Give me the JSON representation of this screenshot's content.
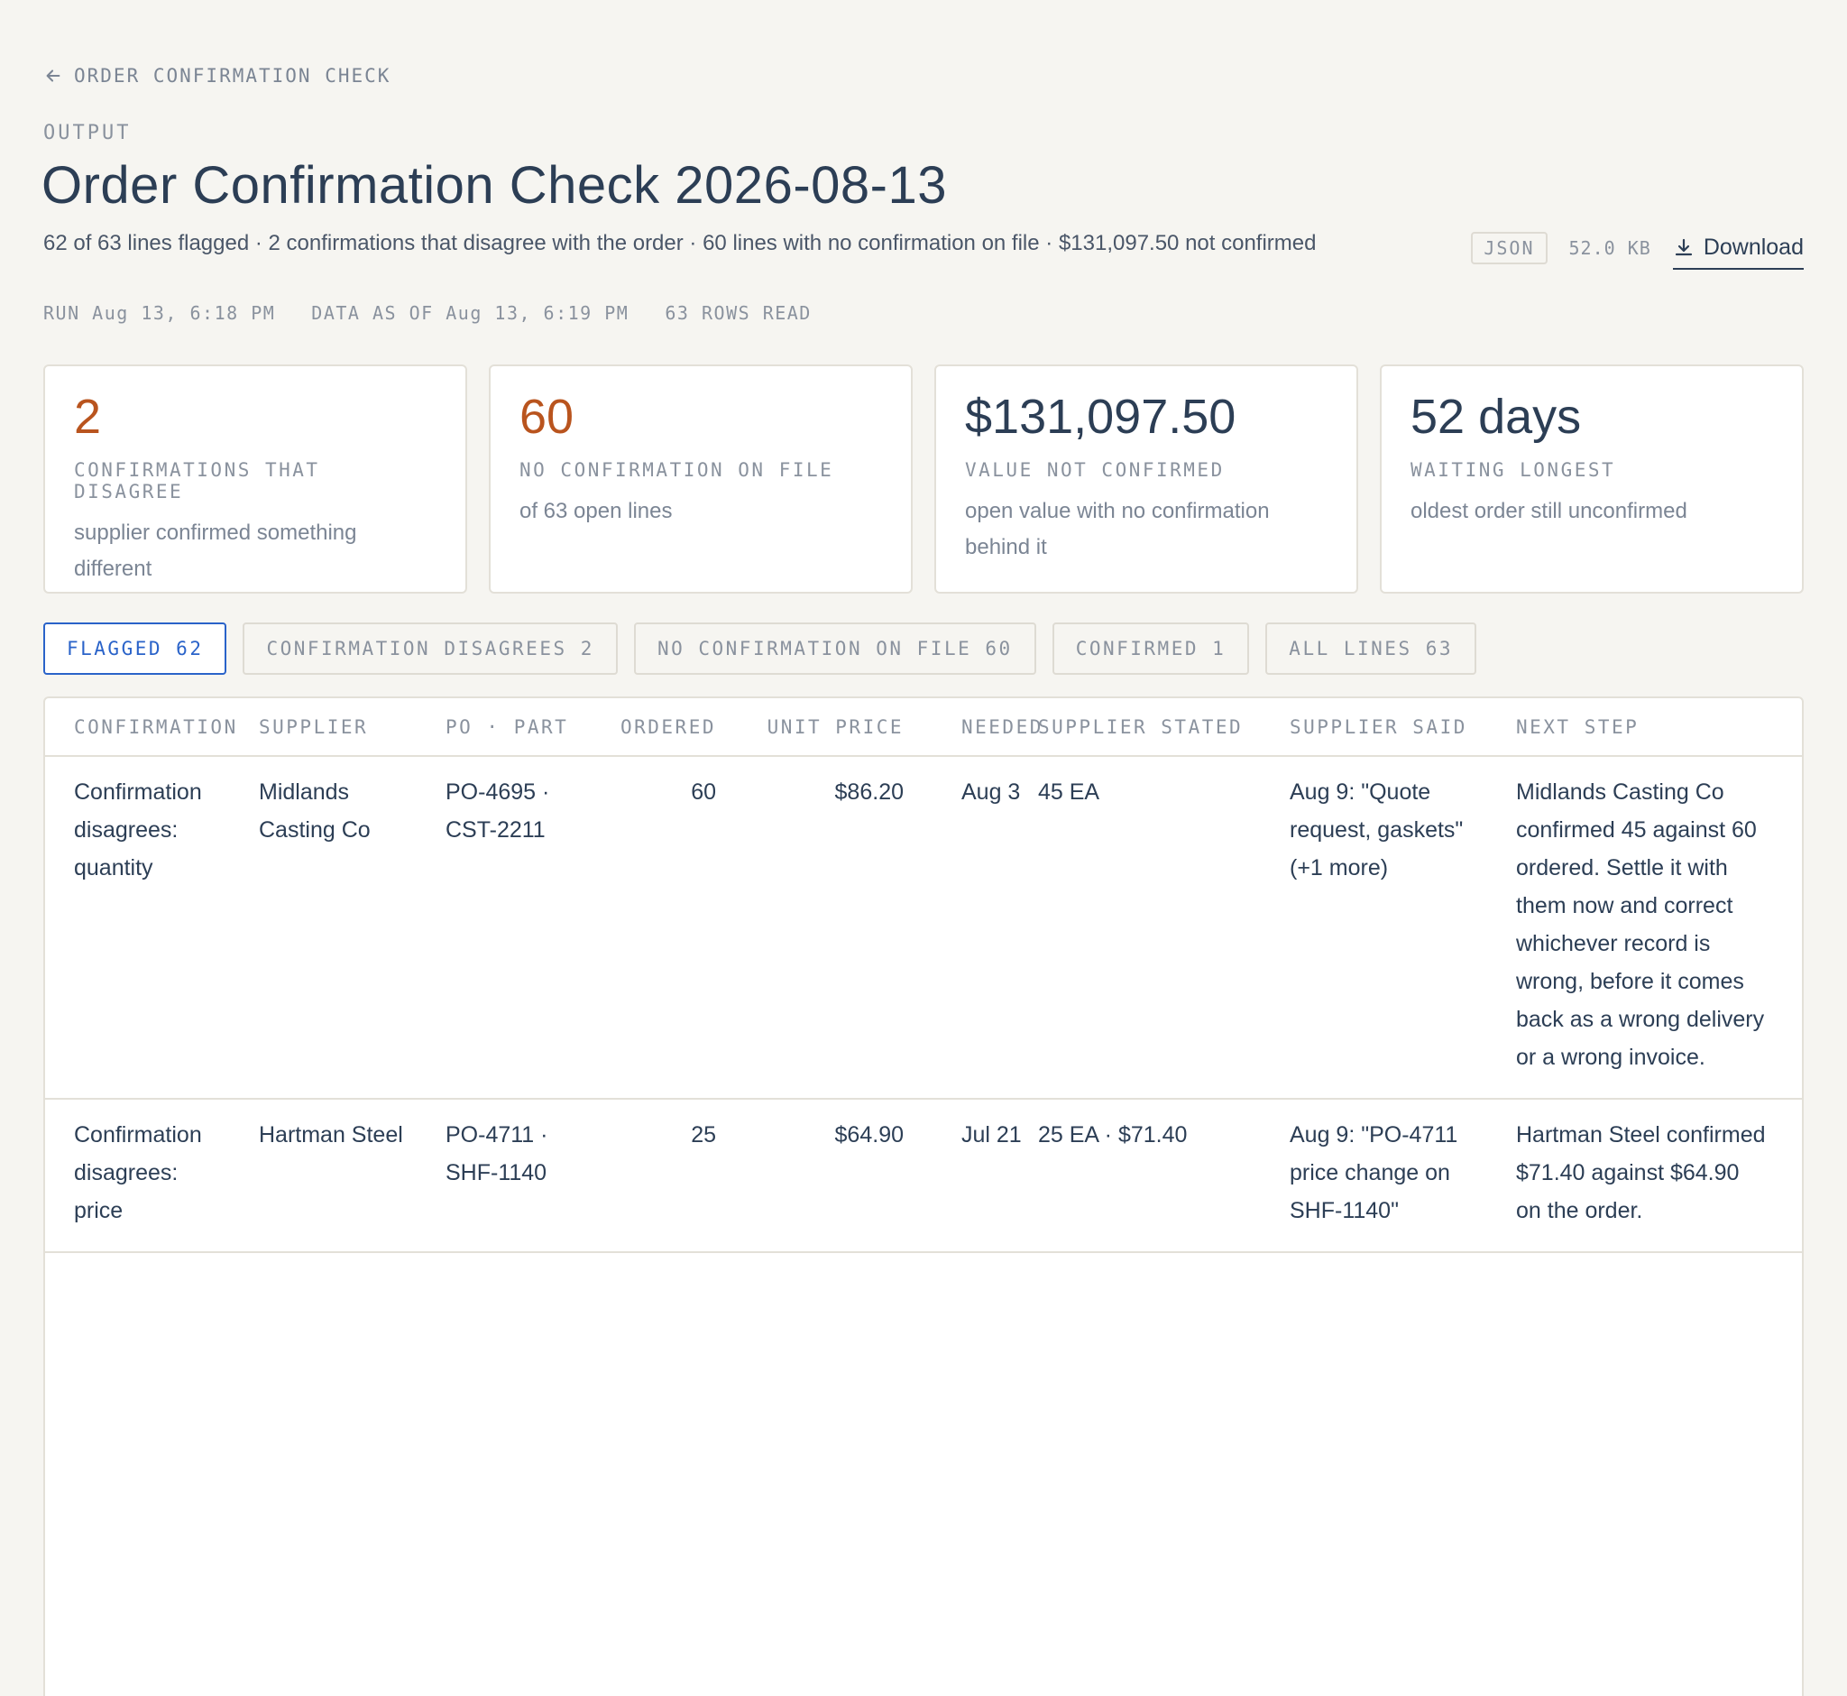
{
  "nav": {
    "back_label": "ORDER CONFIRMATION CHECK"
  },
  "header": {
    "eyebrow": "OUTPUT",
    "title": "Order Confirmation Check 2026-08-13",
    "summary": "62 of 63 lines flagged · 2 confirmations that disagree with the order · 60 lines with no confirmation on file · $131,097.50 not confirmed",
    "file_format": "JSON",
    "file_size": "52.0 KB",
    "download_label": "Download"
  },
  "run_info": {
    "run": "RUN Aug 13, 6:18 PM",
    "data_as_of": "DATA AS OF Aug 13, 6:19 PM",
    "rows_read": "63 ROWS READ"
  },
  "cards": [
    {
      "value": "2",
      "label": "CONFIRMATIONS THAT DISAGREE",
      "sub": "supplier confirmed something different"
    },
    {
      "value": "60",
      "label": "NO CONFIRMATION ON FILE",
      "sub": "of 63 open lines"
    },
    {
      "value": "$131,097.50",
      "label": "VALUE NOT CONFIRMED",
      "sub": "open value with no confirmation behind it"
    },
    {
      "value": "52 days",
      "label": "WAITING LONGEST",
      "sub": "oldest order still unconfirmed"
    }
  ],
  "colors": {
    "accent": "#2a63c9",
    "warning": "#b9541e",
    "text": "#2c3e55"
  },
  "filters": [
    {
      "label": "FLAGGED",
      "count": "62"
    },
    {
      "label": "CONFIRMATION DISAGREES",
      "count": "2"
    },
    {
      "label": "NO CONFIRMATION ON FILE",
      "count": "60"
    },
    {
      "label": "CONFIRMED",
      "count": "1"
    },
    {
      "label": "ALL LINES",
      "count": "63"
    }
  ],
  "table": {
    "columns": [
      "CONFIRMATION",
      "SUPPLIER",
      "PO · PART",
      "ORDERED",
      "UNIT PRICE",
      "NEEDED",
      "SUPPLIER STATED",
      "SUPPLIER SAID",
      "NEXT STEP"
    ],
    "rows": [
      {
        "confirmation": "Confirmation disagrees: quantity",
        "supplier": "Midlands Casting Co",
        "po_part": "PO-4695 · CST-2211",
        "ordered": "60",
        "unit_price": "$86.20",
        "needed": "Aug 3",
        "supplier_stated": "45 EA",
        "supplier_said": "Aug 9: \"Quote request, gaskets\" (+1 more)",
        "next_step": "Midlands Casting Co confirmed 45 against 60 ordered. Settle it with them now and correct whichever record is wrong, before it comes back as a wrong delivery or a wrong invoice."
      },
      {
        "confirmation": "Confirmation disagrees: price",
        "supplier": "Hartman Steel",
        "po_part": "PO-4711 · SHF-1140",
        "ordered": "25",
        "unit_price": "$64.90",
        "needed": "Jul 21",
        "supplier_stated": "25 EA · $71.40",
        "supplier_said": "Aug 9: \"PO-4711 price change on SHF-1140\"",
        "next_step": "Hartman Steel confirmed $71.40 against $64.90 on the order."
      }
    ]
  }
}
